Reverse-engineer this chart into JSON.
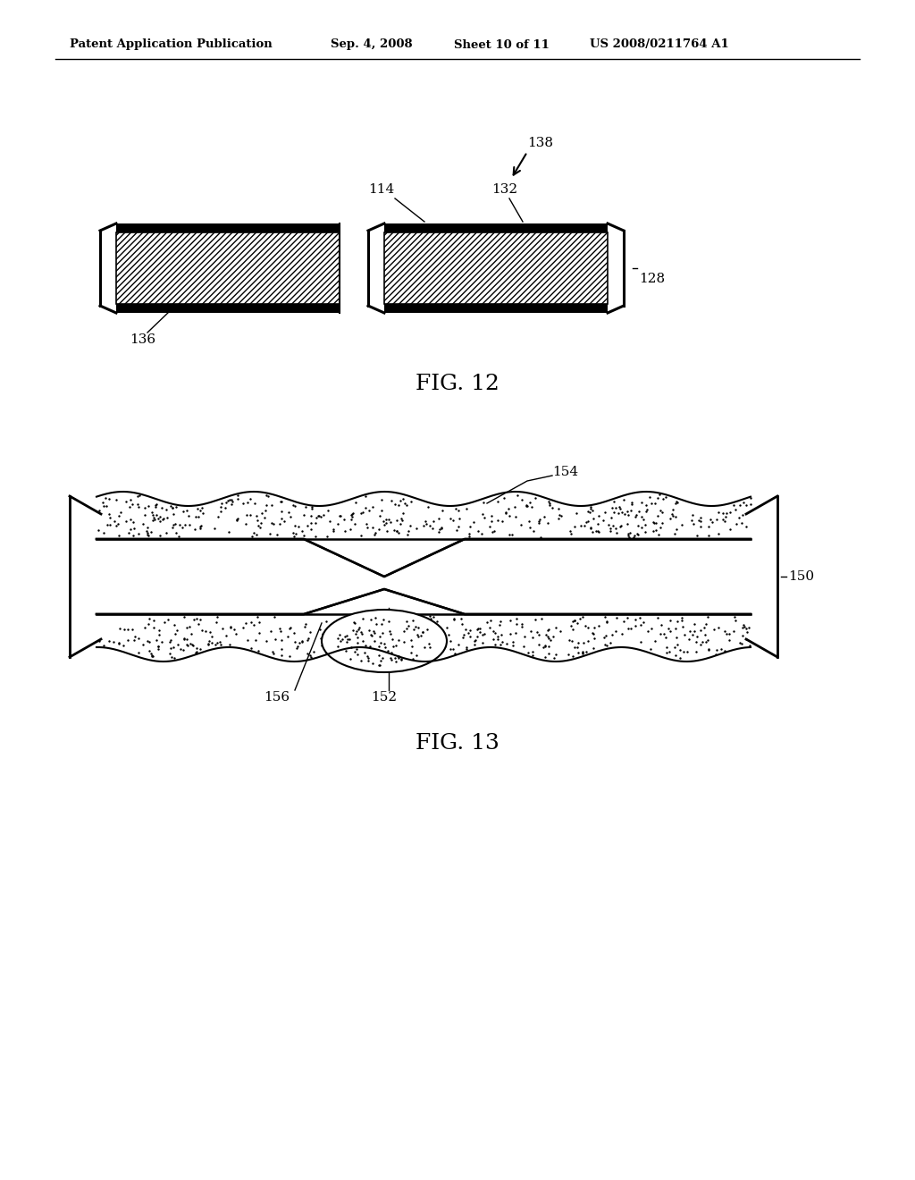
{
  "background_color": "#ffffff",
  "header_text": "Patent Application Publication",
  "header_date": "Sep. 4, 2008",
  "header_sheet": "Sheet 10 of 11",
  "header_patent": "US 2008/0211764 A1",
  "fig12_label": "FIG. 12",
  "fig13_label": "FIG. 13",
  "label_138": "138",
  "label_114": "114",
  "label_132": "132",
  "label_128": "128",
  "label_136": "136",
  "label_154": "154",
  "label_150": "150",
  "label_156": "156",
  "label_152": "152",
  "line_color": "#000000"
}
